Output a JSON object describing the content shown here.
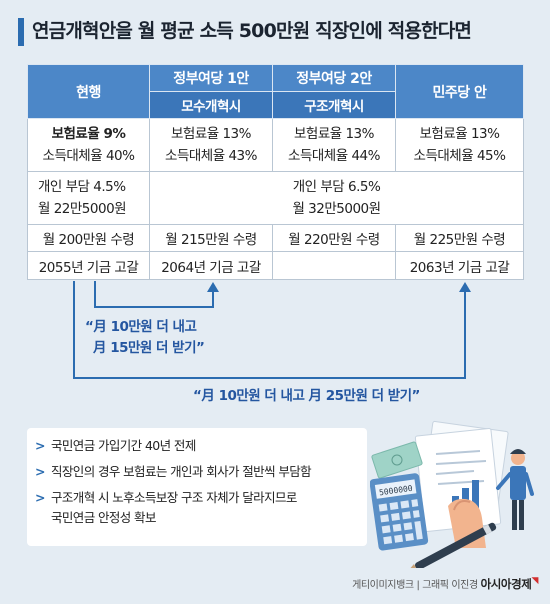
{
  "title": "연금개혁안을 월 평균 소득 500만원 직장인에 적용한다면",
  "table": {
    "headers": {
      "current": "현행",
      "gov1": "정부여당 1안",
      "gov1_sub": "모수개혁시",
      "gov2": "정부여당 2안",
      "gov2_sub": "구조개혁시",
      "dem": "민주당 안"
    },
    "rates": {
      "current_1": "보험료율 9%",
      "current_2": "소득대체율 40%",
      "gov1_1": "보험료율 13%",
      "gov1_2": "소득대체율 43%",
      "gov2_1": "보험료율 13%",
      "gov2_2": "소득대체율 44%",
      "dem_1": "보험료율 13%",
      "dem_2": "소득대체율 45%"
    },
    "burden": {
      "current_1": "개인 부담 4.5%",
      "current_2": "월 22만5000원",
      "others_1": "개인 부담 6.5%",
      "others_2": "월 32만5000원"
    },
    "receive": {
      "current": "월 200만원 수령",
      "gov1": "월 215만원 수령",
      "gov2": "월 220만원 수령",
      "dem": "월 225만원 수령"
    },
    "depletion": {
      "current": "2055년 기금 고갈",
      "gov1": "2064년 기금 고갈",
      "gov2": "",
      "dem": "2063년 기금 고갈"
    }
  },
  "notes": {
    "gov_line1": "“月 10만원 더 내고",
    "gov_line2": "月 15만원 더 받기”",
    "dem": "“月 10만원 더 내고 月 25만원 더 받기”"
  },
  "bullets": [
    {
      "lines": [
        "국민연금 가입기간 40년 전제"
      ]
    },
    {
      "lines": [
        "직장인의 경우 보험료는 개인과 회사가 절반씩 부담함"
      ]
    },
    {
      "lines": [
        "구조개혁 시 노후소득보장 구조 자체가 달라지므로",
        "국민연금 안정성 확보"
      ]
    }
  ],
  "illustration": {
    "calculator_display": "5000000"
  },
  "credit": {
    "source": "게티이미지뱅크 | 그래픽 이진경",
    "brand": "아시아경제"
  },
  "colors": {
    "header": "#4c87c8",
    "header_sub": "#3b76b9",
    "accent": "#2b6cb0",
    "note_text": "#2456a0",
    "background": "#e4ecf3"
  }
}
